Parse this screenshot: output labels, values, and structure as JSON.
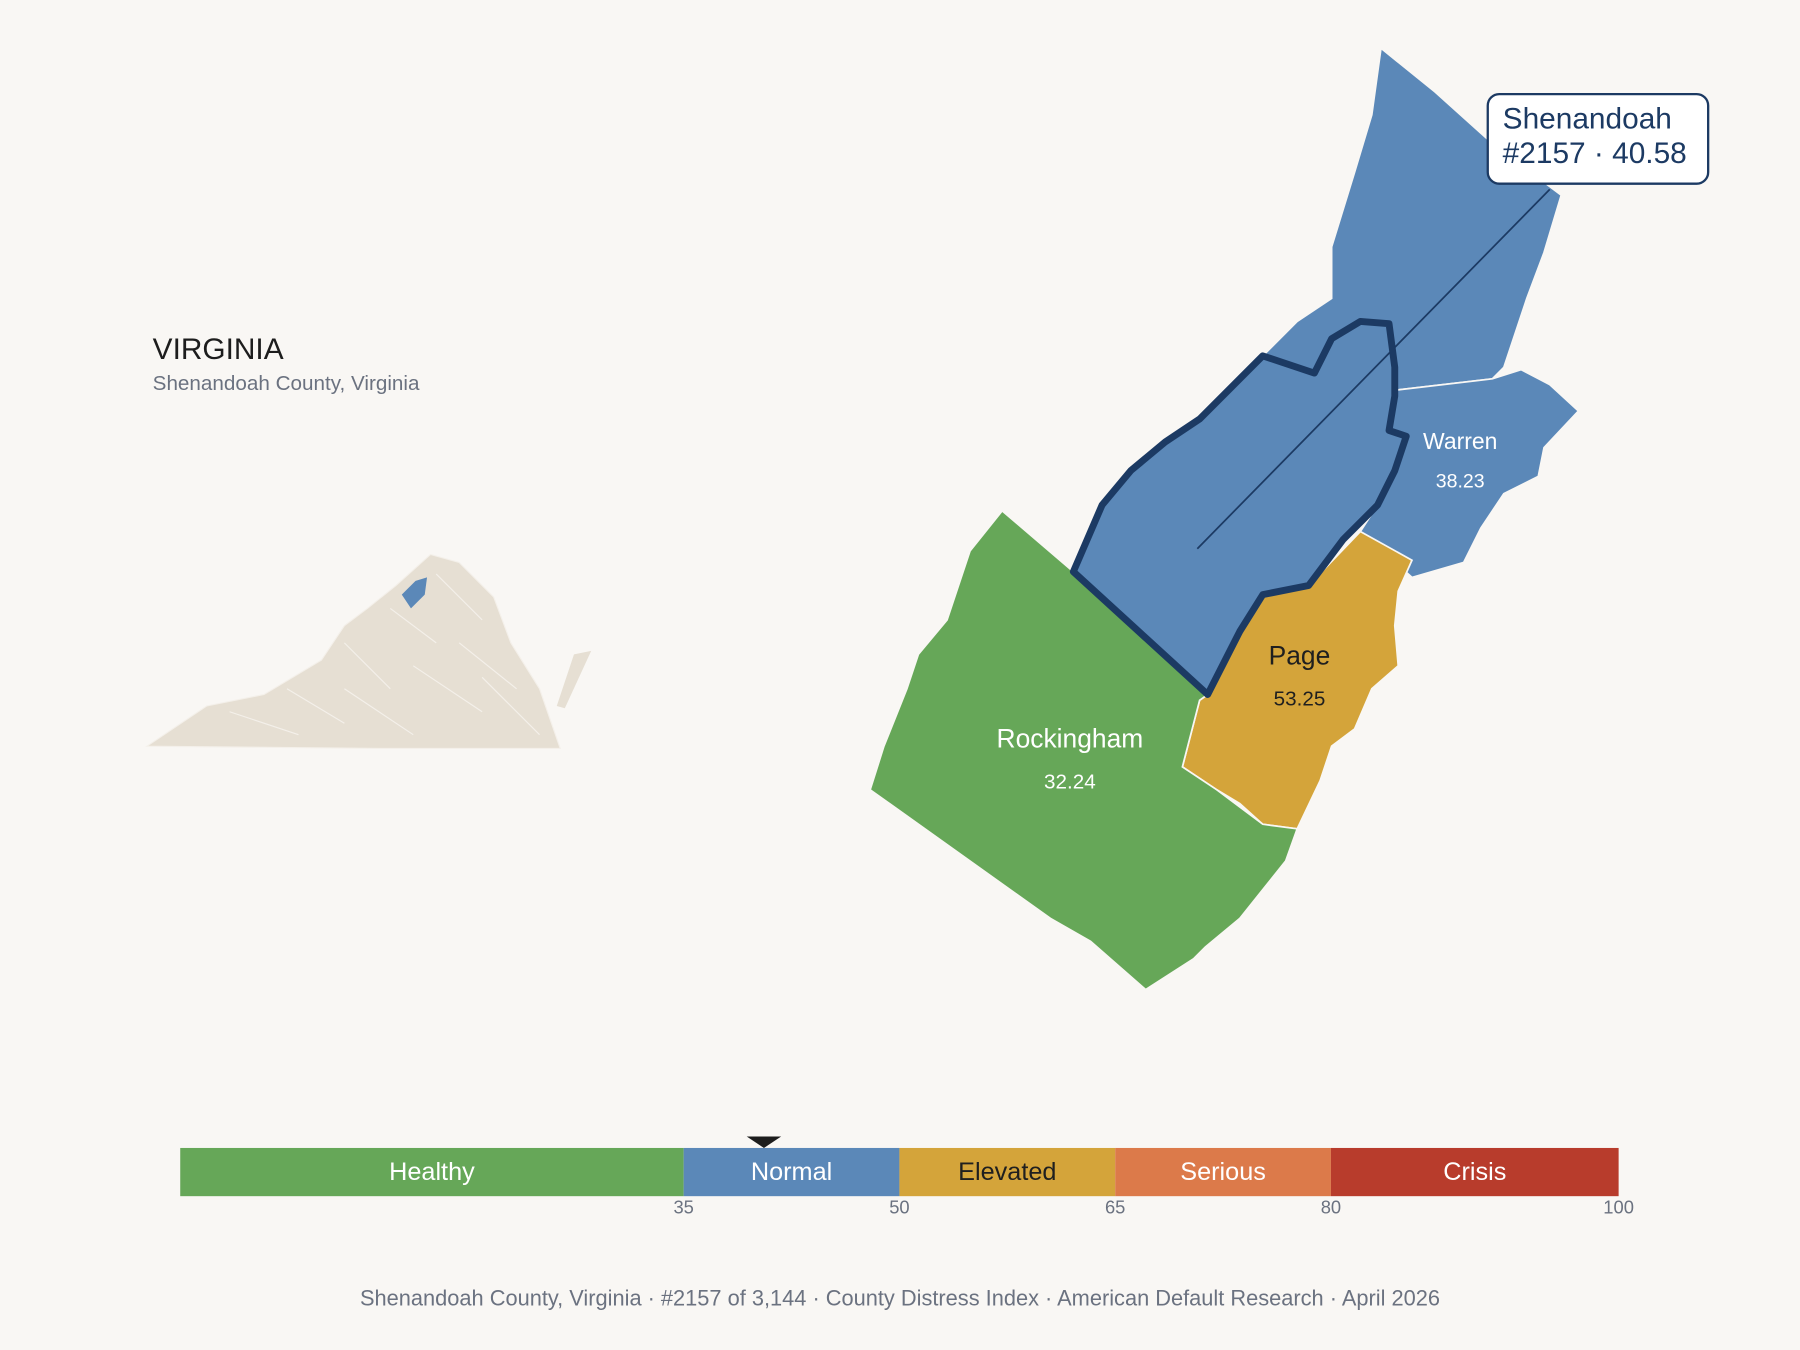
{
  "header": {
    "title": "VIRGINIA",
    "subtitle": "Shenandoah County, Virginia"
  },
  "counties": [
    {
      "name": "Shenandoah",
      "score": 40.58
    },
    {
      "name": "Warren",
      "score": 38.23
    },
    {
      "name": "Page",
      "score": 53.25
    },
    {
      "name": "Rockingham",
      "score": 32.24
    }
  ],
  "callout": {
    "name": "Shenandoah",
    "detail": "#2157 · 40.58"
  },
  "scale": {
    "range": [
      0,
      100
    ],
    "ticks": [
      35,
      50,
      65,
      80,
      100
    ],
    "bands": [
      {
        "label": "Healthy",
        "color": "#66a758",
        "text_color": "#ffffff"
      },
      {
        "label": "Normal",
        "color": "#5b88b8",
        "text_color": "#ffffff"
      },
      {
        "label": "Elevated",
        "color": "#d4a43a",
        "text_color": "#1f1f1f"
      },
      {
        "label": "Serious",
        "color": "#dc7a4a",
        "text_color": "#ffffff"
      },
      {
        "label": "Crisis",
        "color": "#b83c2c",
        "text_color": "#ffffff"
      }
    ]
  },
  "footer": "Shenandoah County, Virginia  ·  #2157 of 3,144  ·  County Distress Index  ·  American Default Research  ·  April 2026"
}
